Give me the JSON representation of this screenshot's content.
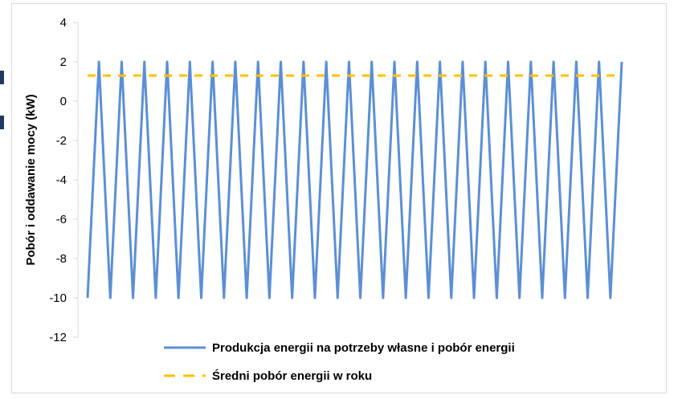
{
  "chart_data": {
    "type": "line",
    "title": "",
    "xlabel": "",
    "ylabel": "Pobór i oddawanie mocy (kW)",
    "ylim": [
      -12,
      4
    ],
    "yticks": [
      4,
      2,
      0,
      -2,
      -4,
      -6,
      -8,
      -10,
      -12
    ],
    "grid": false,
    "legend_position": "bottom",
    "series": [
      {
        "name": "Produkcja energii na potrzeby własne i pobór energii",
        "color": "#5b8fd6",
        "style": "solid",
        "values": [
          -10,
          2,
          -10,
          2,
          -10,
          2,
          -10,
          2,
          -10,
          2,
          -10,
          2,
          -10,
          2,
          -10,
          2,
          -10,
          2,
          -10,
          2,
          -10,
          2,
          -10,
          2,
          -10,
          2,
          -10,
          2,
          -10,
          2,
          -10,
          2,
          -10,
          2,
          -10,
          2,
          -10,
          2,
          -10,
          2,
          -10,
          2,
          -10,
          2,
          -10,
          2,
          -10,
          2
        ]
      },
      {
        "name": "Średni pobór energii w roku",
        "color": "#ffc000",
        "style": "dashed",
        "values": [
          1.3,
          1.3,
          1.3,
          1.3,
          1.3,
          1.3,
          1.3,
          1.3,
          1.3,
          1.3,
          1.3,
          1.3,
          1.3,
          1.3,
          1.3,
          1.3,
          1.3,
          1.3,
          1.3,
          1.3,
          1.3,
          1.3,
          1.3,
          1.3,
          1.3,
          1.3,
          1.3,
          1.3,
          1.3,
          1.3,
          1.3,
          1.3,
          1.3,
          1.3,
          1.3,
          1.3,
          1.3,
          1.3,
          1.3,
          1.3,
          1.3,
          1.3,
          1.3,
          1.3,
          1.3,
          1.3,
          1.3,
          1.3
        ]
      }
    ]
  }
}
